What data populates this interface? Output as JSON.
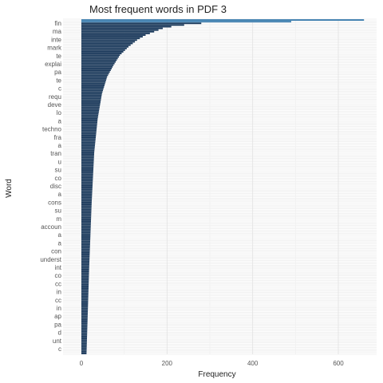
{
  "chart_data": {
    "type": "bar",
    "orientation": "horizontal",
    "title": "Most frequent words in PDF 3",
    "xlabel": "Frequency",
    "ylabel": "Word",
    "xlim": [
      0,
      660
    ],
    "x_ticks": [
      0,
      200,
      400,
      600
    ],
    "grid": true,
    "legend": "none",
    "bar_color": "#1b3a5c",
    "bar_color_top": "#3d7fb0",
    "category_count": 200,
    "visible_category_labels": [
      "fin",
      "ma",
      "inte",
      "mark",
      "te",
      "explai",
      "pa",
      "te",
      "c",
      "requ",
      "deve",
      "lo",
      "a",
      "techno",
      "fra",
      "a",
      "tran",
      "u",
      "su",
      "co",
      "disc",
      "a",
      "cons",
      "su",
      "m",
      "accoun",
      "a",
      "a",
      "con",
      "underst",
      "int",
      "co",
      "cc",
      "in",
      "cc",
      "in",
      "ap",
      "pa",
      "d",
      "unt",
      "c"
    ],
    "value_profile": [
      {
        "rank": 1,
        "value": 660
      },
      {
        "rank": 2,
        "value": 490
      },
      {
        "rank": 3,
        "value": 280
      },
      {
        "rank": 4,
        "value": 240
      },
      {
        "rank": 5,
        "value": 210
      },
      {
        "rank": 6,
        "value": 190
      },
      {
        "rank": 8,
        "value": 170
      },
      {
        "rank": 10,
        "value": 150
      },
      {
        "rank": 13,
        "value": 130
      },
      {
        "rank": 17,
        "value": 110
      },
      {
        "rank": 22,
        "value": 90
      },
      {
        "rank": 28,
        "value": 75
      },
      {
        "rank": 35,
        "value": 60
      },
      {
        "rank": 45,
        "value": 48
      },
      {
        "rank": 60,
        "value": 38
      },
      {
        "rank": 80,
        "value": 30
      },
      {
        "rank": 110,
        "value": 24
      },
      {
        "rank": 150,
        "value": 18
      },
      {
        "rank": 200,
        "value": 12
      }
    ]
  }
}
